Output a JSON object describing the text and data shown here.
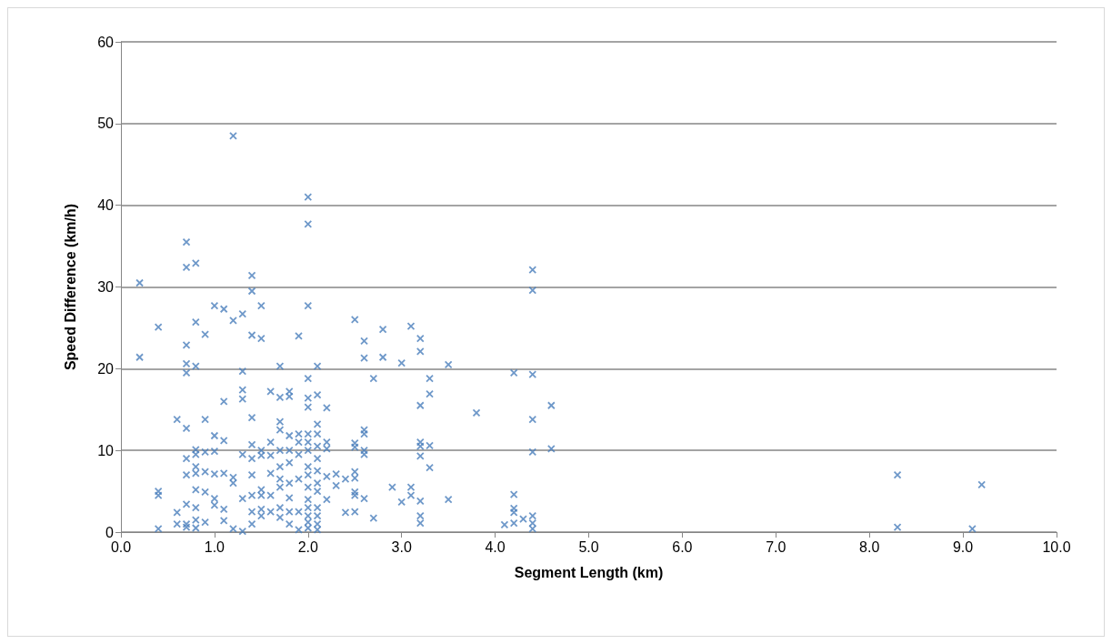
{
  "chart_data": {
    "type": "scatter",
    "xlabel": "Segment Length (km)",
    "ylabel": "Speed Difference (km/h)",
    "xlim": [
      0,
      10
    ],
    "xticks": [
      {
        "value": 0,
        "label": "0.0"
      },
      {
        "value": 1,
        "label": "1.0"
      },
      {
        "value": 2,
        "label": "2.0"
      },
      {
        "value": 3,
        "label": "3.0"
      },
      {
        "value": 4,
        "label": "4.0"
      },
      {
        "value": 5,
        "label": "5.0"
      },
      {
        "value": 6,
        "label": "6.0"
      },
      {
        "value": 7,
        "label": "7.0"
      },
      {
        "value": 8,
        "label": "8.0"
      },
      {
        "value": 9,
        "label": "9.0"
      },
      {
        "value": 10,
        "label": "10.0"
      }
    ],
    "ylim": [
      0,
      60
    ],
    "yticks": [
      0,
      10,
      20,
      30,
      40,
      50,
      60
    ],
    "grid": "y",
    "marker": "cross",
    "series": [
      {
        "color": "#4a7ebb",
        "x": [
          0.2,
          0.2,
          0.4,
          0.4,
          0.4,
          0.4,
          0.6,
          0.6,
          0.6,
          0.7,
          0.7,
          0.7,
          0.7,
          0.7,
          0.7,
          0.7,
          0.7,
          0.7,
          0.7,
          0.7,
          0.8,
          0.8,
          0.8,
          0.8,
          0.8,
          0.8,
          0.8,
          0.8,
          0.8,
          0.8,
          0.8,
          0.9,
          0.9,
          0.9,
          0.9,
          0.9,
          0.9,
          1.0,
          1.0,
          1.0,
          1.0,
          1.0,
          1.0,
          1.1,
          1.1,
          1.1,
          1.1,
          1.1,
          1.1,
          1.2,
          1.2,
          1.2,
          1.2,
          1.2,
          1.3,
          1.3,
          1.3,
          1.3,
          1.3,
          1.3,
          1.3,
          1.4,
          1.4,
          1.4,
          1.4,
          1.4,
          1.4,
          1.4,
          1.4,
          1.4,
          1.4,
          1.5,
          1.5,
          1.5,
          1.5,
          1.5,
          1.5,
          1.5,
          1.5,
          1.6,
          1.6,
          1.6,
          1.6,
          1.6,
          1.6,
          1.7,
          1.7,
          1.7,
          1.7,
          1.7,
          1.7,
          1.7,
          1.7,
          1.7,
          1.7,
          1.8,
          1.8,
          1.8,
          1.8,
          1.8,
          1.8,
          1.8,
          1.8,
          1.8,
          1.9,
          1.9,
          1.9,
          1.9,
          1.9,
          1.9,
          1.9,
          2.0,
          2.0,
          2.0,
          2.0,
          2.0,
          2.0,
          2.0,
          2.0,
          2.0,
          2.0,
          2.0,
          2.0,
          2.0,
          2.0,
          2.0,
          2.0,
          2.0,
          2.1,
          2.1,
          2.1,
          2.1,
          2.1,
          2.1,
          2.1,
          2.1,
          2.1,
          2.1,
          2.1,
          2.1,
          2.1,
          2.2,
          2.2,
          2.2,
          2.2,
          2.2,
          2.3,
          2.3,
          2.4,
          2.4,
          2.5,
          2.5,
          2.5,
          2.5,
          2.5,
          2.5,
          2.5,
          2.5,
          2.6,
          2.6,
          2.6,
          2.6,
          2.6,
          2.6,
          2.6,
          2.7,
          2.7,
          2.8,
          2.8,
          2.9,
          3.0,
          3.0,
          3.1,
          3.1,
          3.1,
          3.2,
          3.2,
          3.2,
          3.2,
          3.2,
          3.2,
          3.2,
          3.2,
          3.2,
          3.3,
          3.3,
          3.3,
          3.3,
          3.5,
          3.5,
          3.8,
          4.1,
          4.2,
          4.2,
          4.2,
          4.2,
          4.2,
          4.3,
          4.4,
          4.4,
          4.4,
          4.4,
          4.4,
          4.4,
          4.4,
          4.4,
          4.6,
          4.6,
          8.3,
          8.3,
          9.1,
          9.2
        ],
        "values": [
          30.5,
          21.4,
          25.1,
          5.0,
          4.5,
          0.4,
          13.8,
          2.4,
          1.0,
          35.5,
          32.4,
          22.9,
          20.6,
          19.5,
          12.7,
          9.0,
          7.0,
          3.4,
          1.0,
          0.6,
          32.9,
          25.7,
          20.3,
          10.1,
          9.5,
          8.0,
          7.2,
          5.2,
          3.0,
          1.5,
          0.5,
          24.2,
          13.8,
          9.8,
          7.4,
          4.9,
          1.2,
          27.7,
          11.8,
          9.9,
          7.1,
          4.1,
          3.3,
          27.3,
          16.0,
          11.2,
          7.2,
          2.8,
          1.4,
          48.5,
          25.9,
          6.7,
          6.0,
          0.4,
          26.7,
          19.7,
          17.4,
          16.3,
          9.5,
          4.1,
          0.1,
          31.4,
          29.5,
          24.1,
          14.0,
          10.7,
          9.0,
          7.0,
          4.5,
          2.5,
          1.0,
          27.7,
          23.7,
          10.0,
          9.4,
          5.2,
          4.5,
          2.8,
          2.0,
          17.2,
          11.0,
          9.4,
          7.2,
          4.5,
          2.5,
          20.3,
          16.5,
          13.5,
          12.5,
          10.0,
          8.0,
          6.5,
          5.5,
          3.0,
          1.8,
          17.2,
          16.6,
          11.8,
          10.0,
          8.5,
          6.0,
          4.2,
          2.5,
          1.0,
          24.0,
          12.0,
          11.0,
          9.5,
          6.5,
          2.5,
          0.3,
          41.0,
          37.7,
          27.7,
          18.8,
          16.4,
          15.3,
          12.0,
          11.0,
          10.0,
          8.0,
          7.0,
          5.5,
          4.0,
          3.0,
          2.0,
          1.2,
          0.5,
          20.3,
          16.8,
          13.2,
          12.0,
          10.5,
          9.0,
          7.5,
          6.0,
          5.0,
          3.0,
          2.0,
          1.0,
          0.3,
          15.2,
          11.0,
          10.2,
          6.8,
          4.0,
          7.1,
          5.7,
          6.5,
          2.4,
          26.0,
          10.9,
          10.4,
          7.4,
          6.6,
          4.9,
          4.5,
          2.5,
          23.4,
          21.3,
          12.5,
          12.0,
          10.0,
          9.5,
          4.1,
          18.8,
          1.7,
          24.8,
          21.4,
          5.5,
          20.7,
          3.7,
          25.2,
          5.5,
          4.5,
          23.7,
          22.1,
          15.5,
          11.0,
          10.5,
          9.3,
          3.8,
          2.0,
          1.1,
          18.8,
          16.9,
          10.6,
          7.9,
          20.5,
          4.0,
          14.6,
          0.9,
          19.5,
          4.6,
          2.9,
          2.4,
          1.1,
          1.6,
          32.1,
          29.6,
          19.3,
          13.8,
          9.8,
          2.0,
          1.1,
          0.4,
          15.5,
          10.2,
          7.0,
          0.6,
          0.4,
          5.8
        ]
      }
    ]
  }
}
